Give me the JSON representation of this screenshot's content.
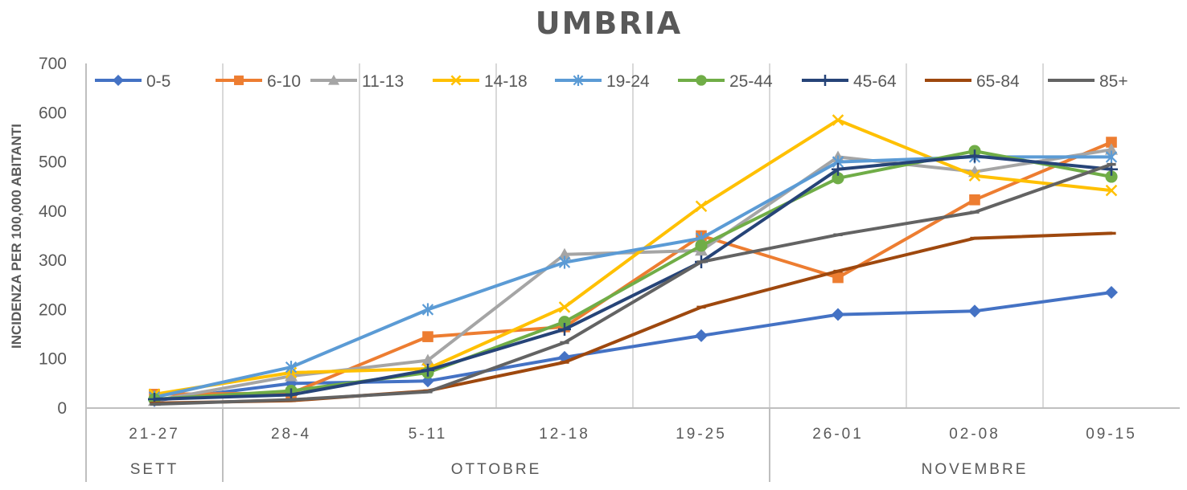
{
  "chart_data": {
    "type": "line",
    "title": "UMBRIA",
    "xlabel": "",
    "ylabel": "INCIDENZA PER 100,000 ABITANTI",
    "ylim": [
      0,
      700
    ],
    "yticks": [
      0,
      100,
      200,
      300,
      400,
      500,
      600,
      700
    ],
    "categories": [
      "21-27",
      "28-4",
      "5-11",
      "12-18",
      "19-25",
      "26-01",
      "02-08",
      "09-15"
    ],
    "groups": [
      {
        "label": "SETT",
        "start": 0,
        "end": 0
      },
      {
        "label": "OTTOBRE",
        "start": 1,
        "end": 4
      },
      {
        "label": "NOVEMBRE",
        "start": 5,
        "end": 7
      }
    ],
    "grid": "vertical",
    "legend_position": "top",
    "series": [
      {
        "name": "0-5",
        "color": "#4472C4",
        "marker": "diamond",
        "values": [
          15,
          50,
          55,
          103,
          147,
          190,
          197,
          235
        ]
      },
      {
        "name": "6-10",
        "color": "#ED7D31",
        "marker": "square",
        "values": [
          28,
          30,
          145,
          165,
          350,
          265,
          423,
          540
        ]
      },
      {
        "name": "11-13",
        "color": "#A5A5A5",
        "marker": "triangle",
        "values": [
          15,
          65,
          97,
          312,
          320,
          510,
          480,
          525
        ]
      },
      {
        "name": "14-18",
        "color": "#FFC000",
        "marker": "x",
        "values": [
          28,
          72,
          80,
          205,
          410,
          585,
          472,
          442
        ]
      },
      {
        "name": "19-24",
        "color": "#5B9BD5",
        "marker": "star",
        "values": [
          22,
          83,
          200,
          296,
          345,
          500,
          510,
          510
        ]
      },
      {
        "name": "25-44",
        "color": "#70AD47",
        "marker": "circle",
        "values": [
          18,
          35,
          72,
          175,
          330,
          467,
          522,
          470
        ]
      },
      {
        "name": "45-64",
        "color": "#264478",
        "marker": "plus",
        "values": [
          18,
          27,
          77,
          160,
          297,
          485,
          512,
          485
        ]
      },
      {
        "name": "65-84",
        "color": "#9E480E",
        "marker": "dash",
        "values": [
          10,
          15,
          35,
          93,
          205,
          278,
          345,
          355
        ]
      },
      {
        "name": "85+",
        "color": "#636363",
        "marker": "dash",
        "values": [
          8,
          17,
          33,
          133,
          297,
          352,
          398,
          495
        ]
      }
    ]
  }
}
